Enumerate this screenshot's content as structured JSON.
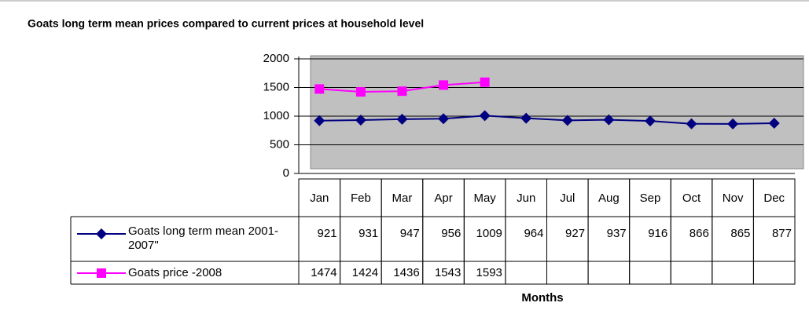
{
  "chart_data": {
    "type": "line",
    "title": "Goats long term mean prices compared to current prices at household level",
    "x_label": "Months",
    "categories": [
      "Jan",
      "Feb",
      "Mar",
      "Apr",
      "May",
      "Jun",
      "Jul",
      "Aug",
      "Sep",
      "Oct",
      "Nov",
      "Dec"
    ],
    "series": [
      {
        "name": "Goats long term mean 2001-2007\"",
        "color": "#000080",
        "marker": "diamond",
        "values": [
          921,
          931,
          947,
          956,
          1009,
          964,
          927,
          937,
          916,
          866,
          865,
          877
        ]
      },
      {
        "name": "Goats price -2008",
        "color": "#ff00ff",
        "marker": "square",
        "values": [
          1474,
          1424,
          1436,
          1543,
          1593,
          null,
          null,
          null,
          null,
          null,
          null,
          null
        ]
      }
    ],
    "ylim": [
      0,
      2000
    ],
    "yticks": [
      0,
      500,
      1000,
      1500,
      2000
    ],
    "grid": true,
    "plot_background": "#c0c0c0"
  }
}
